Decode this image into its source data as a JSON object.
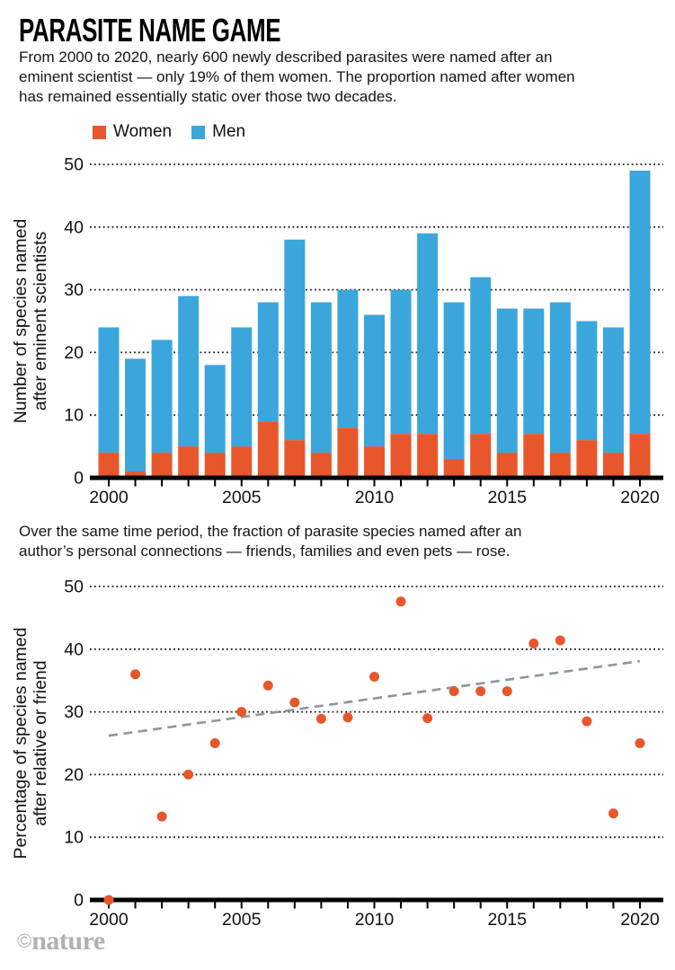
{
  "header": {
    "title": "PARASITE NAME GAME",
    "intro_lines": [
      "From 2000 to 2020, nearly 600 newly described parasites were named after an",
      "eminent scientist — only 19% of them women. The proportion named after women",
      "has remained essentially static over those two decades."
    ]
  },
  "legend": {
    "women_label": "Women",
    "men_label": "Men"
  },
  "mid": {
    "lines": [
      "Over the same time period, the fraction of parasite species named after an",
      "author’s personal connections — friends, families and even pets — rose."
    ]
  },
  "footer": {
    "copyright": "©",
    "brand": "nature"
  },
  "colors": {
    "women": "#E8572B",
    "men": "#3BA6DC",
    "trend": "#8F979E",
    "axis": "#000000",
    "grid": "#1B1B1B",
    "tick_text": "#111111",
    "footer": "#B1B1B1"
  },
  "chart_data": [
    {
      "type": "bar",
      "stacked": true,
      "ylabel_lines": [
        "Number of species named",
        "after eminent scientists"
      ],
      "categories": [
        2000,
        2001,
        2002,
        2003,
        2004,
        2005,
        2006,
        2007,
        2008,
        2009,
        2010,
        2011,
        2012,
        2013,
        2014,
        2015,
        2016,
        2017,
        2018,
        2019,
        2020
      ],
      "series": [
        {
          "name": "Women",
          "color_key": "women",
          "values": [
            4,
            1,
            4,
            5,
            4,
            5,
            9,
            6,
            4,
            8,
            5,
            7,
            7,
            3,
            7,
            4,
            7,
            4,
            6,
            4,
            7
          ]
        },
        {
          "name": "Men",
          "color_key": "men",
          "values": [
            20,
            18,
            18,
            24,
            14,
            19,
            19,
            32,
            24,
            22,
            21,
            23,
            32,
            25,
            25,
            23,
            20,
            24,
            19,
            20,
            42
          ]
        }
      ],
      "totals": [
        24,
        19,
        22,
        29,
        18,
        24,
        28,
        38,
        28,
        30,
        26,
        30,
        39,
        28,
        32,
        27,
        27,
        28,
        25,
        24,
        49
      ],
      "ylim": [
        0,
        50
      ],
      "yticks": [
        0,
        10,
        20,
        30,
        40,
        50
      ],
      "xtick_labels": [
        2000,
        2005,
        2010,
        2015,
        2020
      ],
      "grid": "dotted",
      "legend_position": "top-left"
    },
    {
      "type": "scatter",
      "ylabel_lines": [
        "Percentage of species named",
        "after relative or friend"
      ],
      "x": [
        2000,
        2001,
        2002,
        2003,
        2004,
        2005,
        2006,
        2007,
        2008,
        2009,
        2010,
        2011,
        2012,
        2013,
        2014,
        2015,
        2016,
        2017,
        2018,
        2019,
        2020
      ],
      "y": [
        0,
        36,
        13.3,
        20,
        25,
        30,
        34.2,
        31.5,
        28.9,
        29.1,
        35.6,
        47.6,
        29,
        33.3,
        33.3,
        33.3,
        40.9,
        41.4,
        28.5,
        13.8,
        25
      ],
      "trend": {
        "x": [
          2000,
          2020
        ],
        "y": [
          26.2,
          38.1
        ],
        "style": "dashed"
      },
      "ylim": [
        0,
        50
      ],
      "yticks": [
        0,
        10,
        20,
        30,
        40,
        50
      ],
      "xtick_labels": [
        2000,
        2005,
        2010,
        2015,
        2020
      ],
      "grid": "dotted"
    }
  ]
}
